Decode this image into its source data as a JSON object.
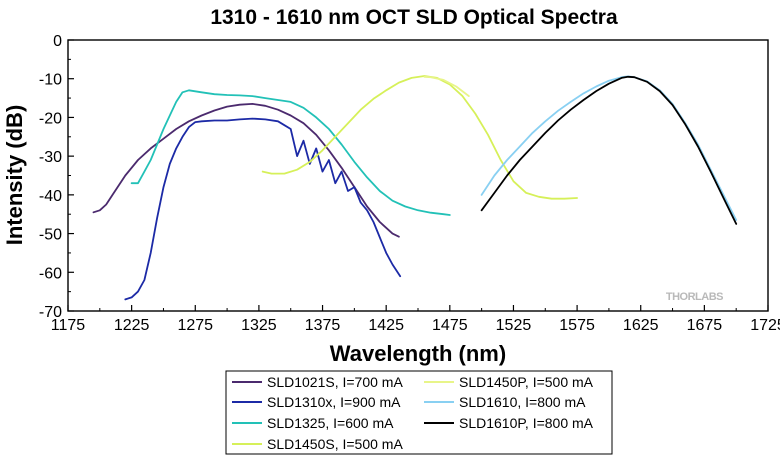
{
  "chart_data": {
    "type": "line",
    "title": "1310 - 1610 nm OCT SLD Optical Spectra",
    "xlabel": "Wavelength (nm)",
    "ylabel": "Intensity (dB)",
    "xlim": [
      1175,
      1725
    ],
    "ylim": [
      -70,
      0
    ],
    "xticks": [
      "1175",
      "1225",
      "1275",
      "1325",
      "1375",
      "1425",
      "1475",
      "1525",
      "1575",
      "1625",
      "1675",
      "1725"
    ],
    "yticks": [
      "0",
      "-10",
      "-20",
      "-30",
      "-40",
      "-50",
      "-60",
      "-70"
    ],
    "grid": false,
    "legend_position": "bottom-center",
    "watermark": "THORLABS",
    "series": [
      {
        "name": "SLD1021S, I=700 mA",
        "color": "#4b2a6e",
        "x": [
          1195,
          1200,
          1205,
          1210,
          1220,
          1230,
          1240,
          1250,
          1260,
          1270,
          1280,
          1290,
          1300,
          1310,
          1320,
          1330,
          1340,
          1350,
          1360,
          1370,
          1380,
          1390,
          1400,
          1410,
          1420,
          1430,
          1435
        ],
        "y": [
          -44.5,
          -44,
          -42.5,
          -40,
          -35,
          -31,
          -28,
          -25.5,
          -23,
          -21,
          -19.5,
          -18.2,
          -17.2,
          -16.7,
          -16.5,
          -17,
          -18,
          -19.5,
          -21.5,
          -24.5,
          -28.5,
          -33,
          -38,
          -43,
          -47,
          -50,
          -50.8
        ]
      },
      {
        "name": "SLD1310x, I=900 mA",
        "color": "#1c2aa6",
        "x": [
          1220,
          1225,
          1230,
          1235,
          1240,
          1245,
          1250,
          1255,
          1260,
          1265,
          1270,
          1275,
          1280,
          1290,
          1300,
          1310,
          1320,
          1330,
          1340,
          1345,
          1350,
          1355,
          1360,
          1365,
          1370,
          1375,
          1380,
          1385,
          1390,
          1395,
          1400,
          1405,
          1410,
          1415,
          1420,
          1425,
          1430,
          1436
        ],
        "y": [
          -67,
          -66.5,
          -65,
          -62,
          -55,
          -46,
          -38,
          -32,
          -28,
          -25,
          -22.5,
          -21.2,
          -21,
          -20.8,
          -20.8,
          -20.5,
          -20.3,
          -20.5,
          -21,
          -22,
          -23,
          -30,
          -26,
          -32,
          -28,
          -34,
          -31,
          -37,
          -34,
          -39,
          -38,
          -42,
          -44,
          -47,
          -51,
          -55,
          -58,
          -61
        ]
      },
      {
        "name": "SLD1325, I=600 mA",
        "color": "#22c1b7",
        "x": [
          1225,
          1230,
          1235,
          1240,
          1245,
          1250,
          1255,
          1260,
          1265,
          1270,
          1280,
          1290,
          1300,
          1310,
          1320,
          1330,
          1340,
          1350,
          1360,
          1370,
          1380,
          1390,
          1400,
          1410,
          1420,
          1430,
          1440,
          1450,
          1460,
          1470,
          1475
        ],
        "y": [
          -37,
          -37,
          -34,
          -31,
          -27,
          -23,
          -19.5,
          -16,
          -13.5,
          -13,
          -13.5,
          -14,
          -14.2,
          -14.3,
          -14.5,
          -15,
          -15.5,
          -16,
          -17.5,
          -20,
          -23,
          -27,
          -31.5,
          -35.5,
          -39,
          -41.5,
          -43,
          -44,
          -44.6,
          -45,
          -45.2
        ]
      },
      {
        "name": "SLD1450S, I=500 mA",
        "color": "#d6f059",
        "x": [
          1328,
          1335,
          1345,
          1355,
          1365,
          1375,
          1385,
          1395,
          1405,
          1415,
          1425,
          1435,
          1445,
          1455,
          1465,
          1475,
          1485,
          1495,
          1505,
          1515,
          1525,
          1535,
          1545,
          1555,
          1565,
          1575
        ],
        "y": [
          -34,
          -34.5,
          -34.5,
          -33.5,
          -31.5,
          -28.5,
          -25,
          -21.5,
          -18,
          -15.2,
          -13,
          -11,
          -9.8,
          -9.3,
          -9.8,
          -11.5,
          -14.5,
          -19,
          -24.5,
          -31,
          -36.5,
          -39.5,
          -40.5,
          -41,
          -41,
          -40.8
        ]
      },
      {
        "name": "SLD1450P, I=500 mA",
        "color": "#e8f589",
        "x": [
          1455,
          1460,
          1470,
          1480,
          1490
        ],
        "y": [
          -9.5,
          -9.6,
          -10.3,
          -12,
          -14.5
        ]
      },
      {
        "name": "SLD1610, I=800 mA",
        "color": "#89d0f2",
        "x": [
          1500,
          1510,
          1520,
          1530,
          1540,
          1550,
          1560,
          1570,
          1580,
          1590,
          1600,
          1610,
          1615,
          1620,
          1630,
          1640,
          1650,
          1660,
          1670,
          1680,
          1690,
          1700
        ],
        "y": [
          -40,
          -35,
          -31,
          -27.5,
          -24,
          -21,
          -18.3,
          -16,
          -13.8,
          -12,
          -10.5,
          -9.6,
          -9.4,
          -9.6,
          -10.7,
          -13,
          -16.5,
          -21.5,
          -27,
          -33.5,
          -40,
          -46.5
        ]
      },
      {
        "name": "SLD1610P, I=800 mA",
        "color": "#000000",
        "x": [
          1500,
          1510,
          1520,
          1530,
          1540,
          1550,
          1560,
          1570,
          1580,
          1590,
          1600,
          1610,
          1615,
          1620,
          1630,
          1640,
          1650,
          1660,
          1670,
          1680,
          1690,
          1700
        ],
        "y": [
          -44,
          -39.5,
          -35,
          -31,
          -27.5,
          -24,
          -20.8,
          -18,
          -15.5,
          -13.2,
          -11.3,
          -9.8,
          -9.5,
          -9.6,
          -10.8,
          -13.2,
          -16.8,
          -21.8,
          -27.5,
          -34,
          -40.8,
          -47.5
        ]
      }
    ]
  }
}
